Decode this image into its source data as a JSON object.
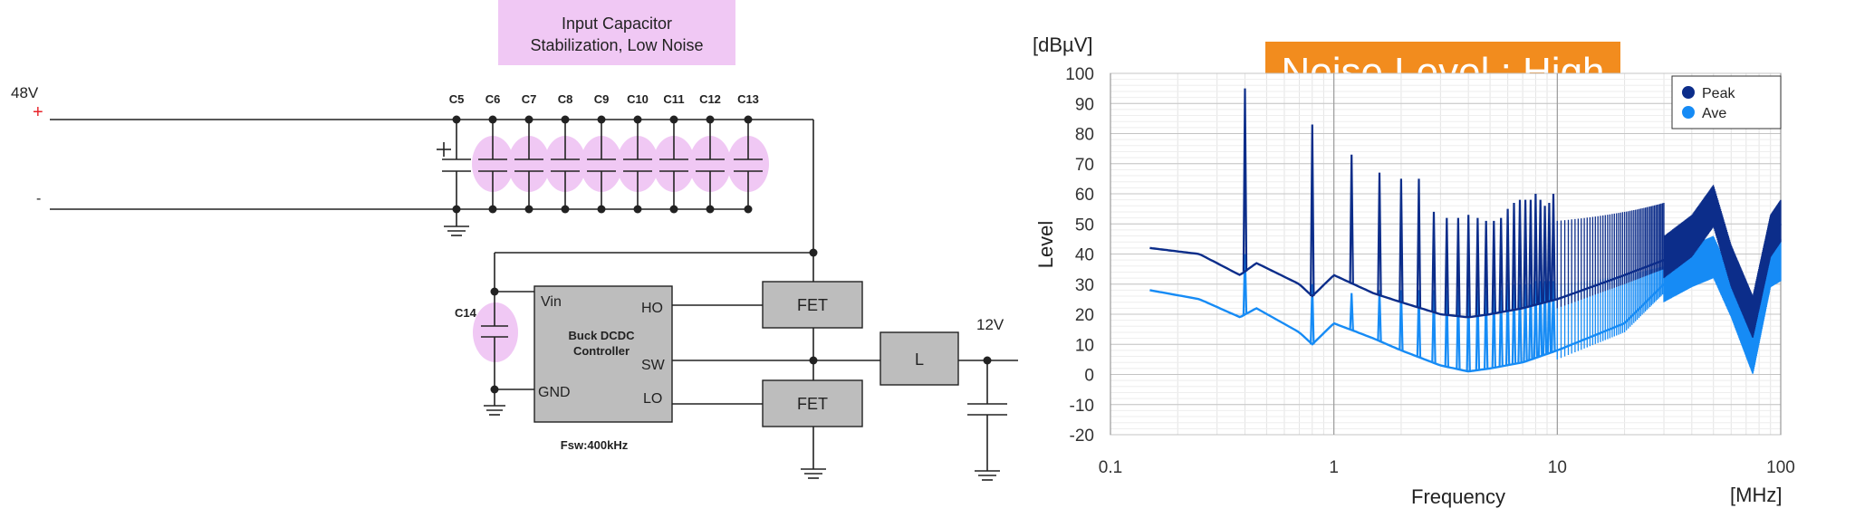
{
  "schematic": {
    "banner": {
      "line1": "Input Capacitor",
      "line2": "Stabilization, Low Noise"
    },
    "supply_label": "48V",
    "plus_sign": "+",
    "minus_sign": "-",
    "capacitor_labels": [
      "C5",
      "C6",
      "C7",
      "C8",
      "C9",
      "C10",
      "C11",
      "C12",
      "C13"
    ],
    "c14_label": "C14",
    "controller": {
      "title_line1": "Buck DCDC",
      "title_line2": "Controller",
      "pin_vin": "Vin",
      "pin_gnd": "GND",
      "pin_ho": "HO",
      "pin_sw": "SW",
      "pin_lo": "LO"
    },
    "fsw_label": "Fsw:400kHz",
    "fet_high_label": "FET",
    "fet_low_label": "FET",
    "inductor_label": "L",
    "output_label": "12V",
    "colors": {
      "highlight": "#f0c8f4",
      "box_fill": "#bdbdbd",
      "plus_red": "#e8232a"
    }
  },
  "chart": {
    "badge": "Noise Level : High",
    "y_unit": "[dBµV]",
    "x_unit": "[MHz]",
    "ylabel": "Level",
    "xlabel": "Frequency",
    "legend": [
      {
        "name": "Peak",
        "color": "#0c2d8a"
      },
      {
        "name": "Ave",
        "color": "#168bf5"
      }
    ],
    "badge_color": "#f28c1e"
  },
  "chart_data": {
    "type": "line",
    "x_scale": "log",
    "xlim": [
      0.1,
      100
    ],
    "ylim": [
      -20,
      100
    ],
    "x_ticks": [
      "0.1",
      "1",
      "10",
      "100"
    ],
    "y_ticks": [
      "100",
      "90",
      "80",
      "70",
      "60",
      "50",
      "40",
      "30",
      "20",
      "10",
      "0",
      "-10",
      "-20"
    ],
    "grid": true,
    "legend_position": "top-right",
    "series": [
      {
        "name": "Peak",
        "baseline": [
          [
            0.15,
            42
          ],
          [
            0.25,
            40
          ],
          [
            0.38,
            33
          ],
          [
            0.45,
            37
          ],
          [
            0.7,
            30
          ],
          [
            0.8,
            26
          ],
          [
            1.0,
            33
          ],
          [
            1.5,
            27
          ],
          [
            2.0,
            24
          ],
          [
            3.0,
            20
          ],
          [
            4.0,
            19
          ],
          [
            5.0,
            20
          ],
          [
            7.0,
            22
          ],
          [
            10.0,
            25
          ],
          [
            20.0,
            33
          ],
          [
            30.0,
            38
          ],
          [
            40.0,
            45
          ],
          [
            50.0,
            55
          ],
          [
            60.0,
            35
          ],
          [
            75.0,
            18
          ],
          [
            90.0,
            45
          ],
          [
            100.0,
            50
          ]
        ],
        "spikes": [
          [
            0.4,
            95
          ],
          [
            0.8,
            83
          ],
          [
            1.2,
            73
          ],
          [
            1.6,
            67
          ],
          [
            2.0,
            65
          ],
          [
            2.4,
            65
          ],
          [
            2.8,
            54
          ],
          [
            3.2,
            52
          ],
          [
            3.6,
            52
          ],
          [
            4.0,
            53
          ],
          [
            4.4,
            52
          ],
          [
            4.8,
            51
          ],
          [
            5.2,
            51
          ],
          [
            5.6,
            52
          ],
          [
            6.0,
            55
          ],
          [
            6.4,
            57
          ],
          [
            6.8,
            58
          ],
          [
            7.2,
            58
          ],
          [
            7.6,
            58
          ],
          [
            8.0,
            60
          ],
          [
            8.4,
            58
          ],
          [
            8.8,
            56
          ],
          [
            9.2,
            57
          ],
          [
            9.6,
            60
          ]
        ]
      },
      {
        "name": "Ave",
        "baseline": [
          [
            0.15,
            28
          ],
          [
            0.25,
            25
          ],
          [
            0.38,
            19
          ],
          [
            0.45,
            22
          ],
          [
            0.7,
            14
          ],
          [
            0.8,
            10
          ],
          [
            1.0,
            17
          ],
          [
            1.5,
            12
          ],
          [
            2.0,
            8
          ],
          [
            3.0,
            3
          ],
          [
            4.0,
            1
          ],
          [
            5.0,
            2
          ],
          [
            7.0,
            4
          ],
          [
            10.0,
            8
          ],
          [
            20.0,
            17
          ],
          [
            30.0,
            30
          ],
          [
            40.0,
            35
          ],
          [
            50.0,
            38
          ],
          [
            60.0,
            25
          ],
          [
            75.0,
            6
          ],
          [
            90.0,
            35
          ],
          [
            100.0,
            37
          ]
        ],
        "spikes": [
          [
            0.4,
            40
          ],
          [
            0.8,
            30
          ],
          [
            1.2,
            27
          ],
          [
            1.6,
            28
          ],
          [
            2.0,
            28
          ],
          [
            2.4,
            28
          ],
          [
            2.8,
            28
          ],
          [
            3.2,
            28
          ],
          [
            3.6,
            28
          ],
          [
            4.0,
            28
          ],
          [
            4.4,
            28
          ],
          [
            4.8,
            28
          ],
          [
            5.2,
            28
          ],
          [
            5.6,
            28
          ],
          [
            6.0,
            30
          ],
          [
            6.4,
            30
          ],
          [
            6.8,
            30
          ],
          [
            7.2,
            30
          ],
          [
            7.6,
            30
          ],
          [
            8.0,
            31
          ],
          [
            8.4,
            31
          ],
          [
            8.8,
            31
          ],
          [
            9.2,
            31
          ],
          [
            9.6,
            31
          ]
        ]
      }
    ]
  }
}
